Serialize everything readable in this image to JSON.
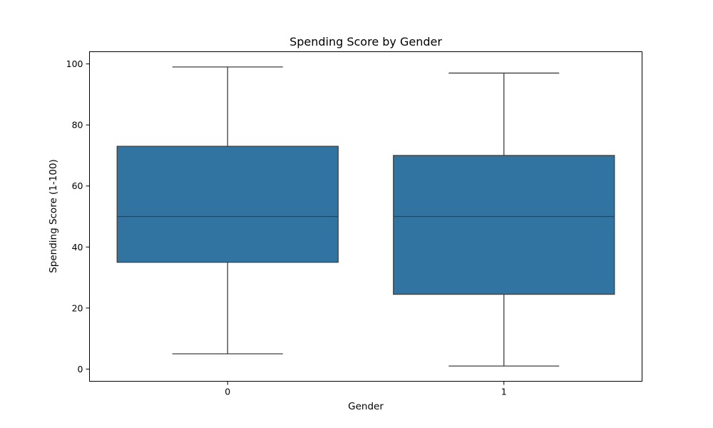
{
  "chart_data": {
    "type": "box",
    "title": "Spending Score by Gender",
    "xlabel": "Gender",
    "ylabel": "Spending Score (1-100)",
    "categories": [
      "0",
      "1"
    ],
    "ylim": [
      -4,
      104
    ],
    "yticks": [
      0,
      20,
      40,
      60,
      80,
      100
    ],
    "boxes": [
      {
        "category": "0",
        "whisker_low": 5,
        "q1": 35,
        "median": 50,
        "q3": 73,
        "whisker_high": 99
      },
      {
        "category": "1",
        "whisker_low": 1,
        "q1": 24.5,
        "median": 50,
        "q3": 70,
        "whisker_high": 97
      }
    ],
    "box_color": "#3274a1",
    "line_color": "#3f3f3f",
    "grid": false,
    "legend": "none"
  }
}
